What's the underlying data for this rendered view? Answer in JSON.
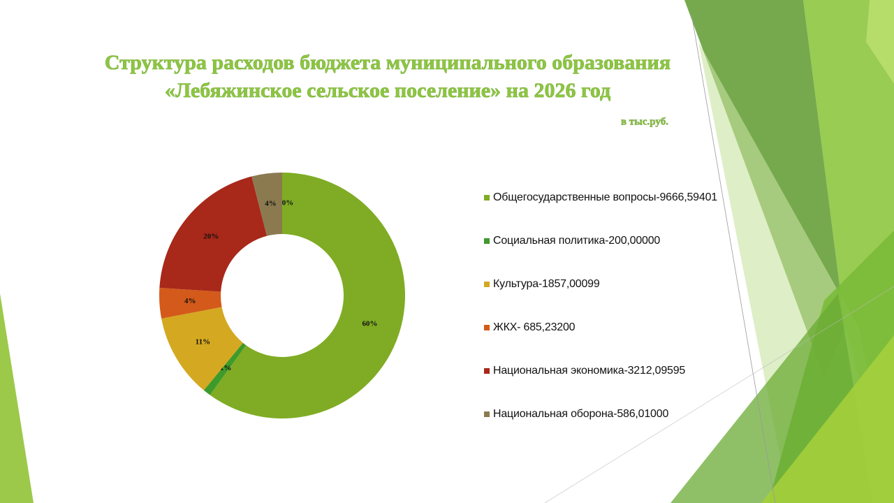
{
  "chart_data": {
    "type": "donut",
    "title": "Структура расходов бюджета муниципального образования",
    "subtitle": "«Лебяжинское сельское поселение» на 2026 год",
    "unit_note": "в тыс.руб.",
    "categories": [
      "Общегосударственные вопросы-9666,59401",
      "Социальная политика-200,00000",
      "Культура-1857,00099",
      "ЖКХ- 685,23200",
      "Национальная экономика-3212,09595",
      "Национальная оборона-586,01000",
      null
    ],
    "values": [
      60,
      1,
      11,
      4,
      20,
      4,
      0
    ],
    "value_labels": [
      "60%",
      "1%",
      "11%",
      "4%",
      "20%",
      "4%",
      "0%"
    ],
    "colors": [
      "#7fac24",
      "#3e9a2b",
      "#d4a820",
      "#d35a1a",
      "#a8281a",
      "#8b7a50",
      "#4a7fb5"
    ],
    "legend": "right"
  }
}
